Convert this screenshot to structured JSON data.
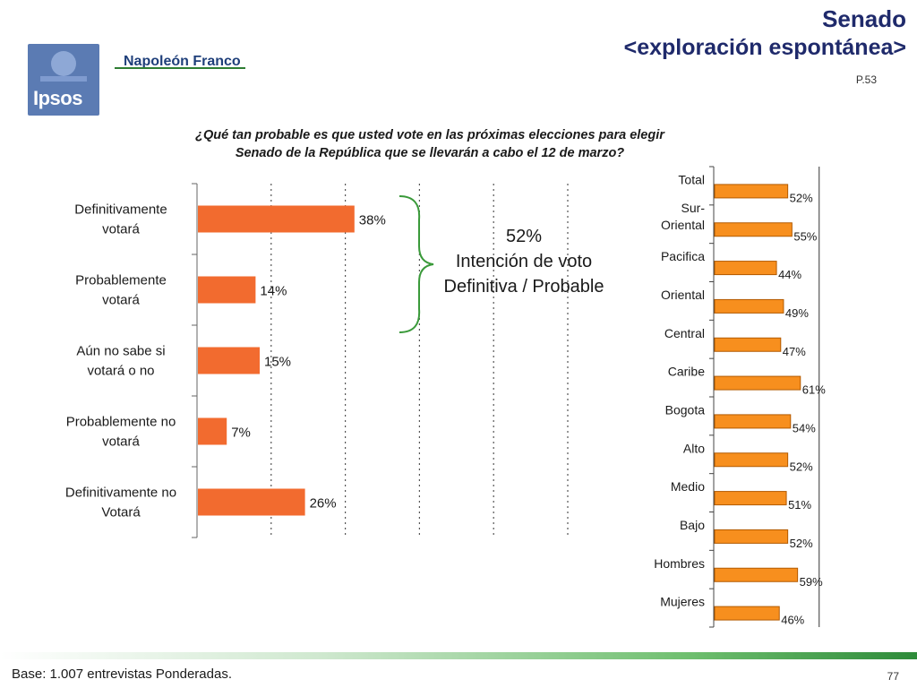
{
  "header": {
    "brand_logo_text": "Ipsos",
    "partner_text": "Napoleón Franco",
    "title_line1": "Senado",
    "title_line2": "<exploración espontánea>",
    "page_ref": "P.53"
  },
  "question": {
    "line1": "¿Qué tan probable es que usted vote en las próximas elecciones para elegir",
    "line2": "Senado de la República que se llevarán a cabo el 12 de marzo?"
  },
  "annotation": {
    "pct": "52%",
    "line1": "Intención de voto",
    "line2": "Definitiva / Probable"
  },
  "footer": {
    "base": "Base: 1.007 entrevistas Ponderadas.",
    "page_number": "77"
  },
  "colors": {
    "bar_left": "#f26b2f",
    "bar_right": "#f78f1e",
    "bar_right_border": "#b35a00",
    "title": "#1f2a6b"
  },
  "chart_data": [
    {
      "type": "bar",
      "orientation": "horizontal",
      "categories": [
        [
          "Definitivamente",
          "votará"
        ],
        [
          "Probablemente",
          "votará"
        ],
        [
          "Aún no sabe si",
          "votará o no"
        ],
        [
          "Probablemente no",
          "votará"
        ],
        [
          "Definitivamente no",
          "Votará"
        ]
      ],
      "values": [
        38,
        14,
        15,
        7,
        26
      ],
      "labels": [
        "38%",
        "14%",
        "15%",
        "7%",
        "26%"
      ],
      "xlim": [
        0,
        100
      ],
      "grid": "vertical dotted"
    },
    {
      "type": "bar",
      "orientation": "horizontal",
      "categories": [
        [
          "Total"
        ],
        [
          "Sur-",
          "Oriental"
        ],
        [
          "Pacifica"
        ],
        [
          "Oriental"
        ],
        [
          "Central"
        ],
        [
          "Caribe"
        ],
        [
          "Bogota"
        ],
        [
          "Alto"
        ],
        [
          "Medio"
        ],
        [
          "Bajo"
        ],
        [
          "Hombres"
        ],
        [
          "Mujeres"
        ]
      ],
      "values": [
        52,
        55,
        44,
        49,
        47,
        61,
        54,
        52,
        51,
        52,
        59,
        46
      ],
      "labels": [
        "52%",
        "55%",
        "44%",
        "49%",
        "47%",
        "61%",
        "54%",
        "52%",
        "51%",
        "52%",
        "59%",
        "46%"
      ],
      "xlim": [
        0,
        100
      ],
      "grid": "vertical line at 100"
    }
  ]
}
